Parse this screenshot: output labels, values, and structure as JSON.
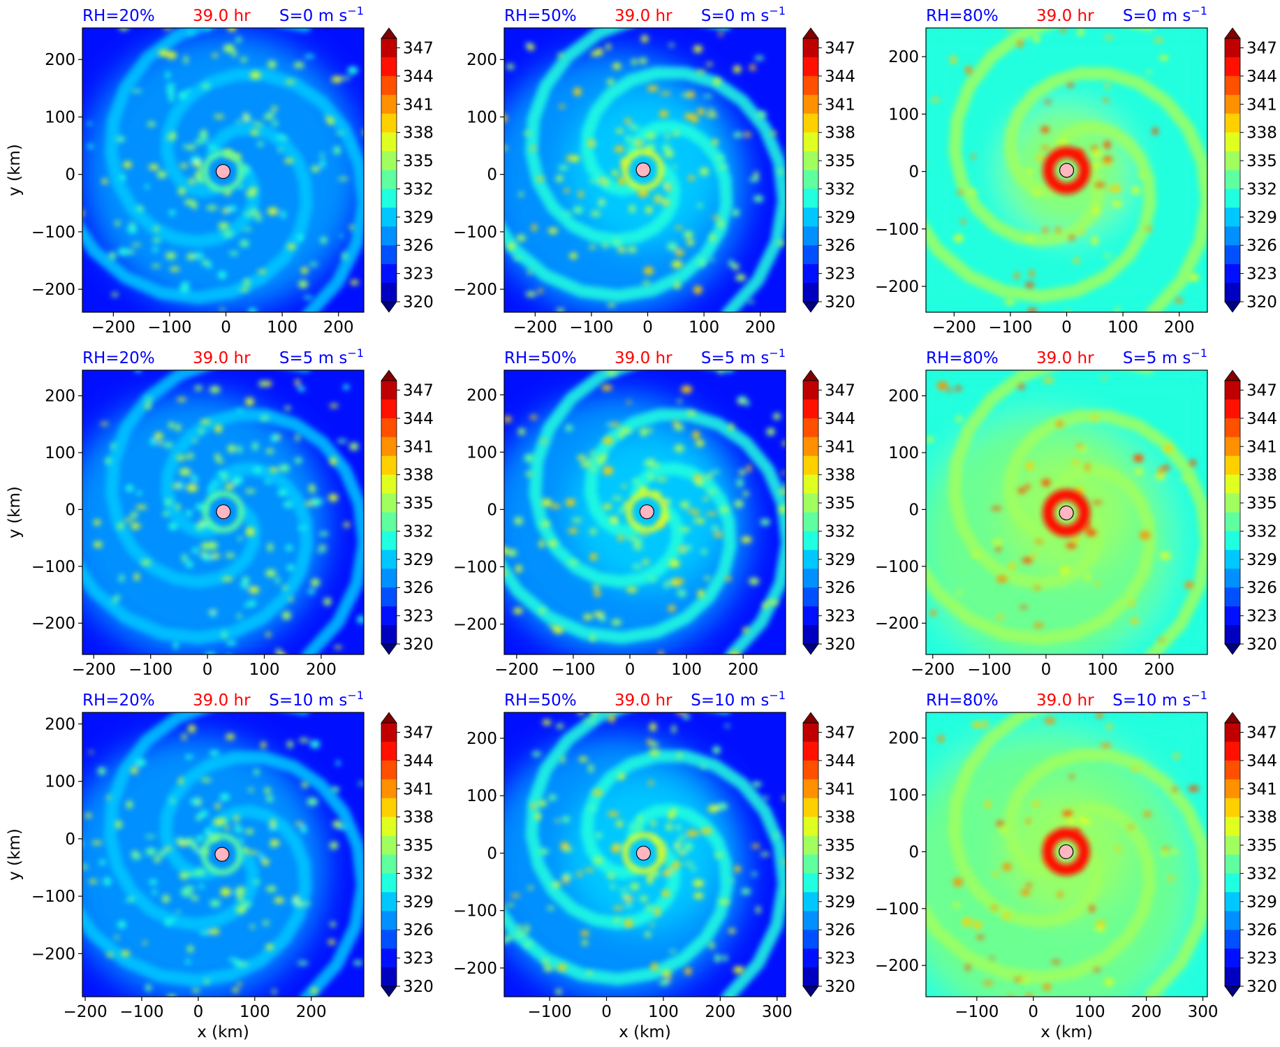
{
  "colorbar": {
    "ticks": [
      "347",
      "344",
      "341",
      "338",
      "335",
      "332",
      "329",
      "326",
      "323",
      "320"
    ],
    "colors": [
      "#000080",
      "#0000c0",
      "#0010ff",
      "#0050ff",
      "#0090ff",
      "#00c8ff",
      "#20ffdf",
      "#5fffa0",
      "#a0ff5f",
      "#dfff20",
      "#ffd000",
      "#ff9000",
      "#ff5000",
      "#ff1000",
      "#c00000",
      "#800000"
    ]
  },
  "chart_data": [
    {
      "type": "heatmap",
      "row": 0,
      "col": 0,
      "rh_label": "RH=20%",
      "time_label": "39.0 hr",
      "shear_label": "S=0 m s",
      "shear_exp": "−1",
      "ylabel": "y (km)",
      "xlabel": "",
      "xlim": [
        -255,
        245
      ],
      "ylim": [
        -240,
        255
      ],
      "xticks": [
        "−200",
        "−100",
        "0",
        "100",
        "200"
      ],
      "yticks": [
        "200",
        "100",
        "0",
        "−100",
        "−200"
      ],
      "center": [
        -5,
        5
      ]
    },
    {
      "type": "heatmap",
      "row": 0,
      "col": 1,
      "rh_label": "RH=50%",
      "time_label": "39.0 hr",
      "shear_label": "S=0 m s",
      "shear_exp": "−1",
      "ylabel": "",
      "xlabel": "",
      "xlim": [
        -255,
        245
      ],
      "ylim": [
        -240,
        255
      ],
      "xticks": [
        "−200",
        "−100",
        "0",
        "100",
        "200"
      ],
      "yticks": [
        "200",
        "100",
        "0",
        "−100",
        "−200"
      ],
      "center": [
        -8,
        8
      ]
    },
    {
      "type": "heatmap",
      "row": 0,
      "col": 2,
      "rh_label": "RH=80%",
      "time_label": "39.0 hr",
      "shear_label": "S=0 m s",
      "shear_exp": "−1",
      "ylabel": "",
      "xlabel": "",
      "xlim": [
        -250,
        250
      ],
      "ylim": [
        -245,
        250
      ],
      "xticks": [
        "−200",
        "−100",
        "0",
        "100",
        "200"
      ],
      "yticks": [
        "200",
        "100",
        "0",
        "−100",
        "−200"
      ],
      "center": [
        0,
        2
      ]
    },
    {
      "type": "heatmap",
      "row": 1,
      "col": 0,
      "rh_label": "RH=20%",
      "time_label": "39.0 hr",
      "shear_label": "S=5 m s",
      "shear_exp": "−1",
      "ylabel": "y (km)",
      "xlabel": "",
      "xlim": [
        -220,
        275
      ],
      "ylim": [
        -255,
        245
      ],
      "xticks": [
        "−200",
        "−100",
        "0",
        "100",
        "200"
      ],
      "yticks": [
        "200",
        "100",
        "0",
        "−100",
        "−200"
      ],
      "center": [
        28,
        -4
      ]
    },
    {
      "type": "heatmap",
      "row": 1,
      "col": 1,
      "rh_label": "RH=50%",
      "time_label": "39.0 hr",
      "shear_label": "S=5 m s",
      "shear_exp": "−1",
      "ylabel": "",
      "xlabel": "",
      "xlim": [
        -222,
        275
      ],
      "ylim": [
        -253,
        243
      ],
      "xticks": [
        "−200",
        "−100",
        "0",
        "100",
        "200"
      ],
      "yticks": [
        "200",
        "100",
        "0",
        "−100",
        "−200"
      ],
      "center": [
        30,
        -4
      ]
    },
    {
      "type": "heatmap",
      "row": 1,
      "col": 2,
      "rh_label": "RH=80%",
      "time_label": "39.0 hr",
      "shear_label": "S=5 m s",
      "shear_exp": "−1",
      "ylabel": "",
      "xlabel": "",
      "xlim": [
        -212,
        285
      ],
      "ylim": [
        -255,
        245
      ],
      "xticks": [
        "−200",
        "−100",
        "0",
        "100",
        "200"
      ],
      "yticks": [
        "200",
        "100",
        "0",
        "−100",
        "−200"
      ],
      "center": [
        36,
        -6
      ]
    },
    {
      "type": "heatmap",
      "row": 2,
      "col": 0,
      "rh_label": "RH=20%",
      "time_label": "39.0 hr",
      "shear_label": "S=10 m s",
      "shear_exp": "−1",
      "ylabel": "y (km)",
      "xlabel": "x (km)",
      "xlim": [
        -205,
        293
      ],
      "ylim": [
        -275,
        220
      ],
      "xticks": [
        "−200",
        "−100",
        "0",
        "100",
        "200"
      ],
      "yticks": [
        "200",
        "100",
        "0",
        "−100",
        "−200"
      ],
      "center": [
        42,
        -27
      ]
    },
    {
      "type": "heatmap",
      "row": 2,
      "col": 1,
      "rh_label": "RH=50%",
      "time_label": "39.0 hr",
      "shear_label": "S=10 m s",
      "shear_exp": "−1",
      "ylabel": "",
      "xlabel": "x (km)",
      "xlim": [
        -180,
        315
      ],
      "ylim": [
        -250,
        245
      ],
      "xticks": [
        "−100",
        "0",
        "100",
        "200",
        "300"
      ],
      "yticks": [
        "200",
        "100",
        "0",
        "−100",
        "−200"
      ],
      "center": [
        65,
        0
      ]
    },
    {
      "type": "heatmap",
      "row": 2,
      "col": 2,
      "rh_label": "RH=80%",
      "time_label": "39.0 hr",
      "shear_label": "S=10 m s",
      "shear_exp": "−1",
      "ylabel": "",
      "xlabel": "x (km)",
      "xlim": [
        -190,
        308
      ],
      "ylim": [
        -255,
        245
      ],
      "xticks": [
        "−100",
        "0",
        "100",
        "200",
        "300"
      ],
      "yticks": [
        "200",
        "100",
        "0",
        "−100",
        "−200"
      ],
      "center": [
        58,
        0
      ]
    }
  ]
}
